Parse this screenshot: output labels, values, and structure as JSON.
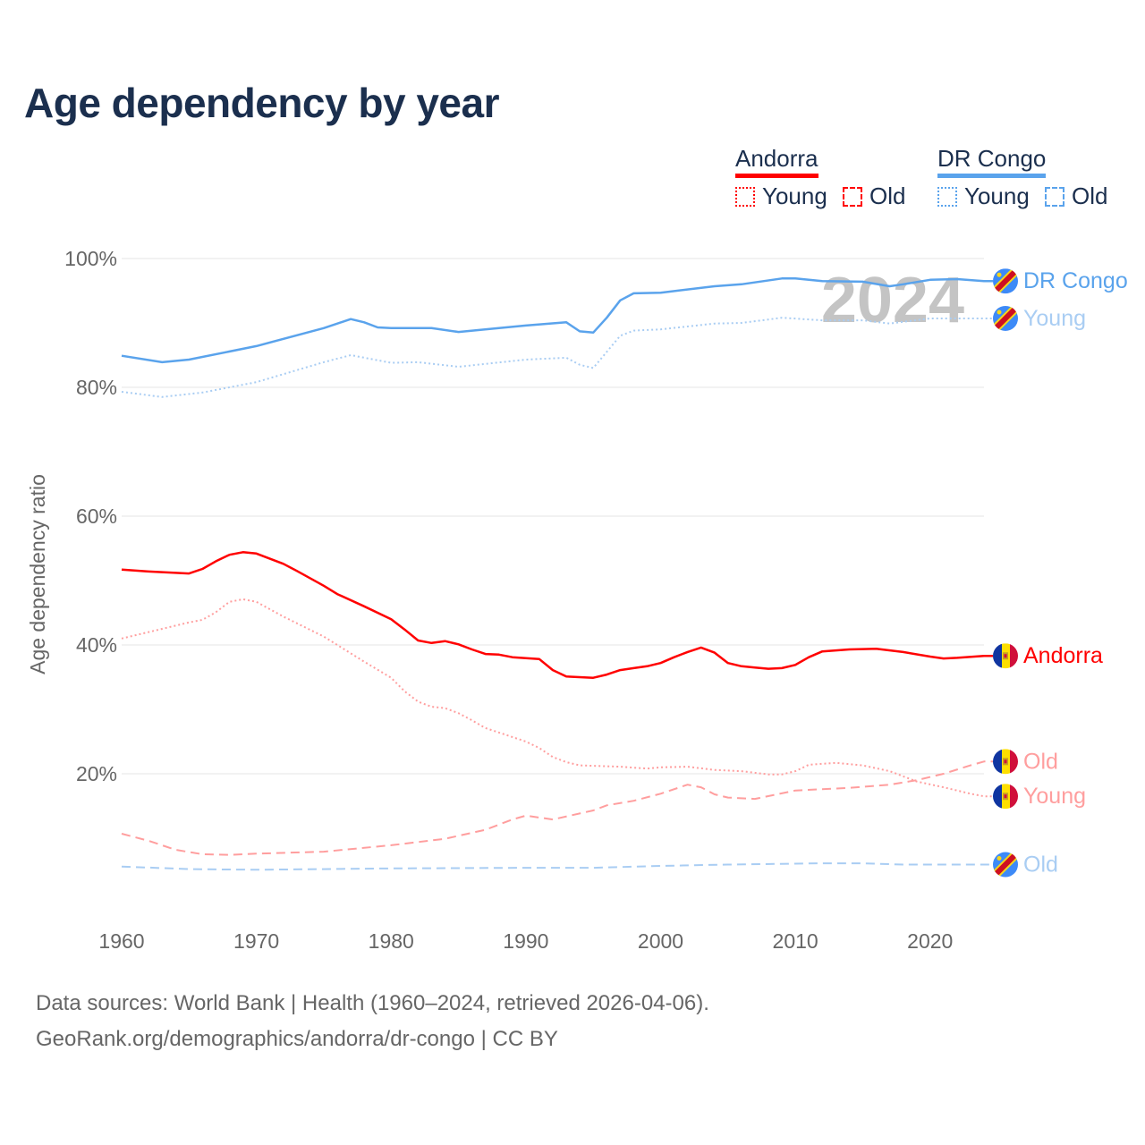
{
  "title": "Age dependency by year",
  "legend": {
    "countries": [
      {
        "name": "Andorra",
        "color": "#ff0000",
        "young": "Young",
        "old": "Old"
      },
      {
        "name": "DR Congo",
        "color": "#5aa3ec",
        "young": "Young",
        "old": "Old"
      }
    ]
  },
  "watermark_year": "2024",
  "footer": {
    "line1": "Data sources: World Bank | Health (1960–2024, retrieved 2026-04-06).",
    "line2": "GeoRank.org/demographics/andorra/dr-congo | CC BY"
  },
  "chart_data": {
    "type": "line",
    "title": "Age dependency by year",
    "xlabel": "",
    "ylabel": "Age dependency ratio",
    "xlim": [
      1960,
      2024
    ],
    "ylim": [
      0,
      100
    ],
    "x_ticks": [
      1960,
      1970,
      1980,
      1990,
      2000,
      2010,
      2020
    ],
    "y_ticks": [
      {
        "v": 20,
        "label": "20%"
      },
      {
        "v": 40,
        "label": "40%"
      },
      {
        "v": 60,
        "label": "60%"
      },
      {
        "v": 80,
        "label": "80%"
      },
      {
        "v": 100,
        "label": "100%"
      }
    ],
    "grid": true,
    "series": [
      {
        "name": "DR Congo",
        "end_label": "DR Congo",
        "country": "drc",
        "style": "solid",
        "color": "#5aa3ec",
        "label_color": "#5aa3ec",
        "points": [
          [
            1960,
            84.9
          ],
          [
            1963,
            83.9
          ],
          [
            1965,
            84.3
          ],
          [
            1970,
            86.4
          ],
          [
            1975,
            89.2
          ],
          [
            1977,
            90.6
          ],
          [
            1978,
            90.1
          ],
          [
            1979,
            89.3
          ],
          [
            1980,
            89.2
          ],
          [
            1983,
            89.2
          ],
          [
            1985,
            88.6
          ],
          [
            1988,
            89.2
          ],
          [
            1990,
            89.6
          ],
          [
            1993,
            90.1
          ],
          [
            1994,
            88.7
          ],
          [
            1995,
            88.5
          ],
          [
            1996,
            90.8
          ],
          [
            1997,
            93.5
          ],
          [
            1998,
            94.6
          ],
          [
            2000,
            94.7
          ],
          [
            2004,
            95.7
          ],
          [
            2006,
            96.0
          ],
          [
            2009,
            96.9
          ],
          [
            2010,
            96.9
          ],
          [
            2012,
            96.5
          ],
          [
            2015,
            96.4
          ],
          [
            2017,
            95.7
          ],
          [
            2018,
            96.0
          ],
          [
            2020,
            96.7
          ],
          [
            2022,
            96.8
          ],
          [
            2024,
            96.5
          ]
        ]
      },
      {
        "name": "DR Congo Young",
        "end_label": "Young",
        "country": "drc",
        "style": "dotted",
        "color": "#a9cdf3",
        "label_color": "#a9cdf3",
        "points": [
          [
            1960,
            79.3
          ],
          [
            1963,
            78.5
          ],
          [
            1966,
            79.2
          ],
          [
            1970,
            80.8
          ],
          [
            1975,
            83.9
          ],
          [
            1977,
            85.0
          ],
          [
            1980,
            83.8
          ],
          [
            1982,
            83.9
          ],
          [
            1985,
            83.2
          ],
          [
            1990,
            84.3
          ],
          [
            1993,
            84.6
          ],
          [
            1994,
            83.5
          ],
          [
            1995,
            83.0
          ],
          [
            1997,
            88.0
          ],
          [
            1998,
            88.8
          ],
          [
            2000,
            89.0
          ],
          [
            2004,
            89.9
          ],
          [
            2006,
            90.0
          ],
          [
            2009,
            90.8
          ],
          [
            2012,
            90.4
          ],
          [
            2015,
            90.4
          ],
          [
            2017,
            89.9
          ],
          [
            2020,
            90.7
          ],
          [
            2024,
            90.7
          ]
        ]
      },
      {
        "name": "Andorra",
        "end_label": "Andorra",
        "country": "and",
        "style": "solid",
        "color": "#ff0000",
        "label_color": "#ff0000",
        "points": [
          [
            1960,
            51.7
          ],
          [
            1962,
            51.4
          ],
          [
            1965,
            51.1
          ],
          [
            1966,
            51.8
          ],
          [
            1967,
            53.0
          ],
          [
            1968,
            54.0
          ],
          [
            1969,
            54.4
          ],
          [
            1970,
            54.2
          ],
          [
            1972,
            52.6
          ],
          [
            1973,
            51.5
          ],
          [
            1975,
            49.2
          ],
          [
            1976,
            47.9
          ],
          [
            1978,
            46.0
          ],
          [
            1980,
            44.0
          ],
          [
            1981,
            42.4
          ],
          [
            1982,
            40.7
          ],
          [
            1983,
            40.3
          ],
          [
            1984,
            40.6
          ],
          [
            1985,
            40.1
          ],
          [
            1986,
            39.3
          ],
          [
            1987,
            38.6
          ],
          [
            1988,
            38.5
          ],
          [
            1989,
            38.1
          ],
          [
            1991,
            37.8
          ],
          [
            1992,
            36.1
          ],
          [
            1993,
            35.1
          ],
          [
            1995,
            34.9
          ],
          [
            1996,
            35.4
          ],
          [
            1997,
            36.1
          ],
          [
            1998,
            36.4
          ],
          [
            1999,
            36.7
          ],
          [
            2000,
            37.2
          ],
          [
            2001,
            38.1
          ],
          [
            2002,
            38.9
          ],
          [
            2003,
            39.6
          ],
          [
            2004,
            38.8
          ],
          [
            2005,
            37.2
          ],
          [
            2006,
            36.7
          ],
          [
            2007,
            36.5
          ],
          [
            2008,
            36.3
          ],
          [
            2009,
            36.4
          ],
          [
            2010,
            36.9
          ],
          [
            2011,
            38.1
          ],
          [
            2012,
            39.0
          ],
          [
            2014,
            39.3
          ],
          [
            2016,
            39.4
          ],
          [
            2018,
            38.9
          ],
          [
            2020,
            38.2
          ],
          [
            2021,
            37.9
          ],
          [
            2022,
            38.0
          ],
          [
            2024,
            38.3
          ]
        ]
      },
      {
        "name": "Andorra Old",
        "end_label": "Old",
        "country": "and",
        "style": "dashed",
        "color": "#ff9e9e",
        "label_color": "#ff9e9e",
        "points": [
          [
            1960,
            10.7
          ],
          [
            1962,
            9.6
          ],
          [
            1964,
            8.2
          ],
          [
            1966,
            7.5
          ],
          [
            1968,
            7.4
          ],
          [
            1970,
            7.6
          ],
          [
            1975,
            7.9
          ],
          [
            1980,
            8.9
          ],
          [
            1984,
            9.9
          ],
          [
            1987,
            11.3
          ],
          [
            1989,
            12.9
          ],
          [
            1990,
            13.5
          ],
          [
            1992,
            12.9
          ],
          [
            1995,
            14.3
          ],
          [
            1996,
            15.1
          ],
          [
            1998,
            15.8
          ],
          [
            2000,
            16.9
          ],
          [
            2002,
            18.3
          ],
          [
            2003,
            17.9
          ],
          [
            2004,
            16.8
          ],
          [
            2005,
            16.3
          ],
          [
            2007,
            16.1
          ],
          [
            2010,
            17.4
          ],
          [
            2014,
            17.8
          ],
          [
            2017,
            18.3
          ],
          [
            2019,
            19.0
          ],
          [
            2021,
            20.0
          ],
          [
            2023,
            21.3
          ],
          [
            2024,
            21.9
          ]
        ]
      },
      {
        "name": "Andorra Young",
        "end_label": "Young",
        "country": "and",
        "style": "dotted",
        "color": "#ff9e9e",
        "label_color": "#ff9e9e",
        "points": [
          [
            1960,
            41.0
          ],
          [
            1963,
            42.5
          ],
          [
            1965,
            43.5
          ],
          [
            1966,
            43.9
          ],
          [
            1967,
            45.1
          ],
          [
            1968,
            46.7
          ],
          [
            1969,
            47.1
          ],
          [
            1970,
            46.7
          ],
          [
            1972,
            44.4
          ],
          [
            1975,
            41.3
          ],
          [
            1978,
            37.4
          ],
          [
            1980,
            34.9
          ],
          [
            1981,
            32.8
          ],
          [
            1982,
            31.2
          ],
          [
            1983,
            30.4
          ],
          [
            1984,
            30.2
          ],
          [
            1985,
            29.4
          ],
          [
            1986,
            28.3
          ],
          [
            1987,
            27.1
          ],
          [
            1988,
            26.4
          ],
          [
            1990,
            25.0
          ],
          [
            1991,
            24.0
          ],
          [
            1992,
            22.6
          ],
          [
            1993,
            21.8
          ],
          [
            1994,
            21.3
          ],
          [
            1997,
            21.1
          ],
          [
            1999,
            20.8
          ],
          [
            2000,
            21.0
          ],
          [
            2002,
            21.1
          ],
          [
            2004,
            20.6
          ],
          [
            2006,
            20.4
          ],
          [
            2008,
            19.9
          ],
          [
            2009,
            19.9
          ],
          [
            2010,
            20.4
          ],
          [
            2011,
            21.4
          ],
          [
            2013,
            21.7
          ],
          [
            2015,
            21.3
          ],
          [
            2017,
            20.4
          ],
          [
            2019,
            18.8
          ],
          [
            2021,
            17.9
          ],
          [
            2023,
            16.9
          ],
          [
            2024,
            16.5
          ]
        ]
      },
      {
        "name": "DR Congo Old",
        "end_label": "Old",
        "country": "drc",
        "style": "dashed",
        "color": "#a9cdf3",
        "label_color": "#a9cdf3",
        "points": [
          [
            1960,
            5.6
          ],
          [
            1965,
            5.2
          ],
          [
            1970,
            5.1
          ],
          [
            1980,
            5.3
          ],
          [
            1990,
            5.4
          ],
          [
            1995,
            5.4
          ],
          [
            2000,
            5.7
          ],
          [
            2005,
            5.9
          ],
          [
            2012,
            6.1
          ],
          [
            2015,
            6.1
          ],
          [
            2018,
            5.9
          ],
          [
            2024,
            5.9
          ]
        ]
      }
    ]
  }
}
